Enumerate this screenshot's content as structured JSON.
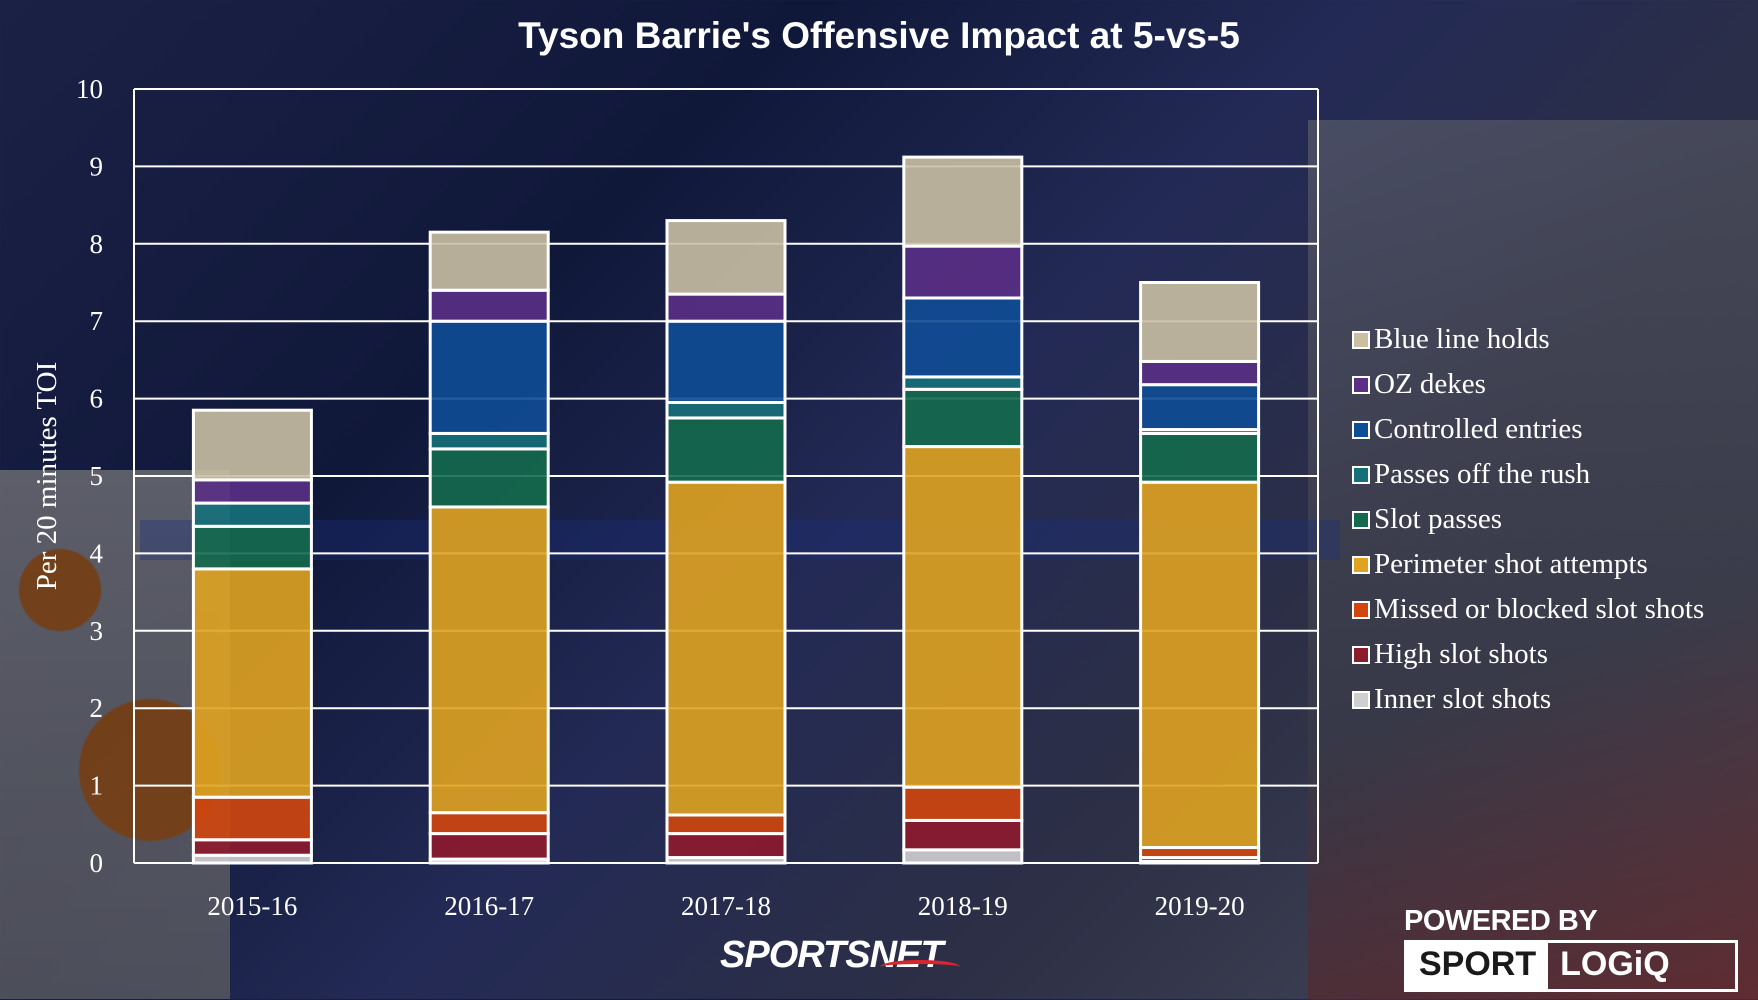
{
  "chart_data": {
    "type": "bar",
    "stacked": true,
    "title": "Tyson Barrie's Offensive Impact at 5-vs-5",
    "xlabel": "",
    "ylabel": "Per 20 minutes TOI",
    "ylim": [
      0,
      10
    ],
    "yticks": [
      "0",
      "1",
      "2",
      "3",
      "4",
      "5",
      "6",
      "7",
      "8",
      "9",
      "10"
    ],
    "grid": true,
    "legend_position": "right",
    "categories": [
      "2015-16",
      "2016-17",
      "2017-18",
      "2018-19",
      "2019-20"
    ],
    "series": [
      {
        "name": "Inner slot shots",
        "color": "#cfcfd2",
        "values": [
          0.1,
          0.05,
          0.07,
          0.17,
          0.02
        ]
      },
      {
        "name": "High slot shots",
        "color": "#8e1a2e",
        "values": [
          0.2,
          0.33,
          0.31,
          0.38,
          0.05
        ]
      },
      {
        "name": "Missed or blocked slot shots",
        "color": "#d2460e",
        "values": [
          0.55,
          0.27,
          0.24,
          0.43,
          0.13
        ]
      },
      {
        "name": "Perimeter shot attempts",
        "color": "#e0a321",
        "values": [
          2.95,
          3.95,
          4.3,
          4.4,
          4.72
        ]
      },
      {
        "name": "Slot passes",
        "color": "#146a4c",
        "values": [
          0.55,
          0.75,
          0.83,
          0.74,
          0.63
        ]
      },
      {
        "name": "Passes off the rush",
        "color": "#16707a",
        "values": [
          0.3,
          0.2,
          0.2,
          0.16,
          0.05
        ]
      },
      {
        "name": "Controlled entries",
        "color": "#0f4d96",
        "values": [
          0.0,
          1.45,
          1.05,
          1.02,
          0.58
        ]
      },
      {
        "name": "OZ dekes",
        "color": "#5a2f85",
        "values": [
          0.3,
          0.4,
          0.35,
          0.67,
          0.3
        ]
      },
      {
        "name": "Blue line holds",
        "color": "#c9bfa3",
        "values": [
          0.9,
          0.75,
          0.95,
          1.15,
          1.02
        ]
      }
    ],
    "legend_order": [
      "Blue line holds",
      "OZ dekes",
      "Controlled entries",
      "Passes off the rush",
      "Slot passes",
      "Perimeter shot attempts",
      "Missed or blocked slot shots",
      "High slot shots",
      "Inner slot shots"
    ]
  },
  "branding": {
    "sportsnet": "SPORTSNET",
    "powered_by": "POWERED BY",
    "sport": "SPORT",
    "logiq": "LOGiQ"
  }
}
